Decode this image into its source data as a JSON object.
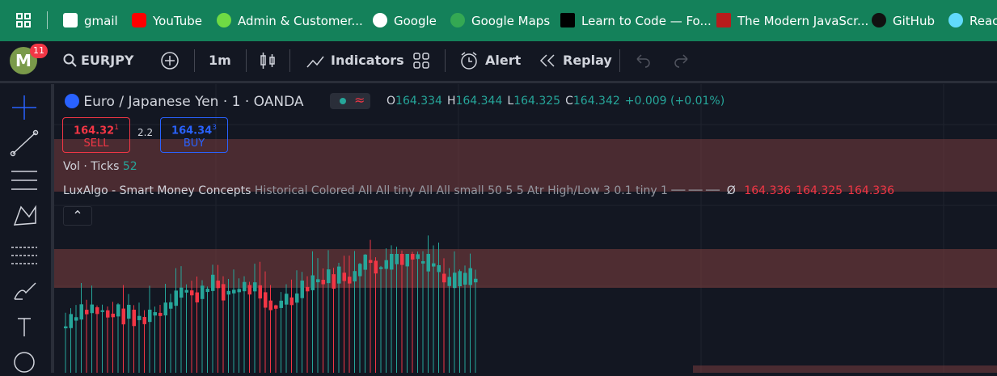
{
  "bookmarks": [
    "gmail",
    "YouTube",
    "Admin & Customer...",
    "Google",
    "Google Maps",
    "Learn to Code — Fo...",
    "The Modern JavaScr...",
    "GitHub",
    "React"
  ],
  "toolbar": {
    "avatar": "M",
    "badge": "11",
    "symbol": "EURJPY",
    "interval": "1m",
    "indicators": "Indicators",
    "alert": "Alert",
    "replay": "Replay"
  },
  "legend": {
    "title": "Euro / Japanese Yen · 1 · OANDA",
    "ohlc": [
      {
        "label": "O",
        "value": "164.334"
      },
      {
        "label": "H",
        "value": "164.344"
      },
      {
        "label": "L",
        "value": "164.325"
      },
      {
        "label": "C",
        "value": "164.342"
      }
    ],
    "change": "+0.009 (+0.01%)"
  },
  "trade": {
    "sell_price": "164.32",
    "sell_sup": "1",
    "sell_label": "SELL",
    "spread": "2.2",
    "buy_price": "164.34",
    "buy_sup": "3",
    "buy_label": "BUY"
  },
  "volume": {
    "label": "Vol · Ticks",
    "value": "52"
  },
  "indicator": {
    "name": "LuxAlgo - Smart Money Concepts",
    "params": "Historical Colored All All tiny All All small 50 5 5 Atr High/Low 3 0.1 tiny 1 ── ── ──",
    "symbol": "Ø",
    "values": [
      "164.336",
      "164.325",
      "164.336"
    ]
  }
}
